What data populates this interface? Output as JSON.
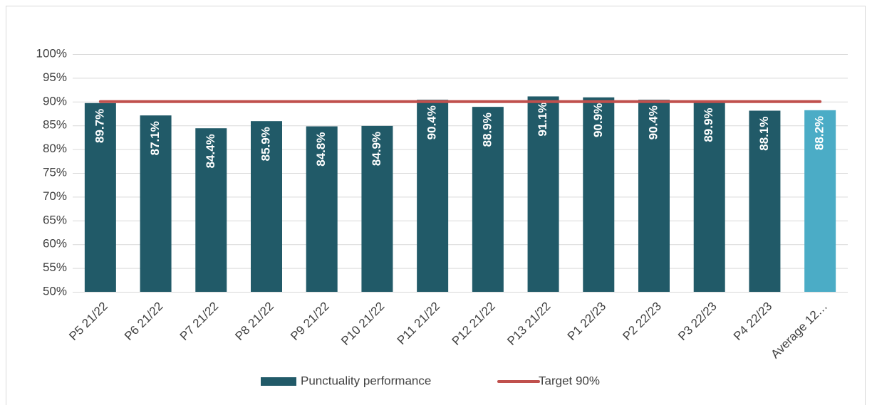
{
  "chart_data": {
    "type": "bar",
    "categories": [
      "P5 21/22",
      "P6 21/22",
      "P7 21/22",
      "P8 21/22",
      "P9 21/22",
      "P10 21/22",
      "P11 21/22",
      "P12 21/22",
      "P13 21/22",
      "P1 22/23",
      "P2 22/23",
      "P3 22/23",
      "P4 22/23",
      "Average 12…"
    ],
    "series": [
      {
        "name": "Punctuality performance",
        "color": "#215a68",
        "colors": [
          "#215a68",
          "#215a68",
          "#215a68",
          "#215a68",
          "#215a68",
          "#215a68",
          "#215a68",
          "#215a68",
          "#215a68",
          "#215a68",
          "#215a68",
          "#215a68",
          "#215a68",
          "#4bacc6"
        ],
        "values": [
          89.7,
          87.1,
          84.4,
          85.9,
          84.8,
          84.9,
          90.4,
          88.9,
          91.1,
          90.9,
          90.4,
          89.9,
          88.1,
          88.2
        ],
        "value_labels": [
          "89.7%",
          "87.1%",
          "84.4%",
          "85.9%",
          "84.8%",
          "84.9%",
          "90.4%",
          "88.9%",
          "91.1%",
          "90.9%",
          "90.4%",
          "89.9%",
          "88.1%",
          "88.2%"
        ]
      },
      {
        "name": "Target 90%",
        "type": "line",
        "color": "#c0504d",
        "values": [
          90,
          90,
          90,
          90,
          90,
          90,
          90,
          90,
          90,
          90,
          90,
          90,
          90,
          90
        ]
      }
    ],
    "ylim": [
      50,
      100
    ],
    "yticks": [
      {
        "value": 50,
        "label": "50%"
      },
      {
        "value": 55,
        "label": "55%"
      },
      {
        "value": 60,
        "label": "60%"
      },
      {
        "value": 65,
        "label": "65%"
      },
      {
        "value": 70,
        "label": "70%"
      },
      {
        "value": 75,
        "label": "75%"
      },
      {
        "value": 80,
        "label": "80%"
      },
      {
        "value": 85,
        "label": "85%"
      },
      {
        "value": 90,
        "label": "90%"
      },
      {
        "value": 95,
        "label": "95%"
      },
      {
        "value": 100,
        "label": "100%"
      }
    ],
    "grid": true,
    "legend": "bottom"
  }
}
